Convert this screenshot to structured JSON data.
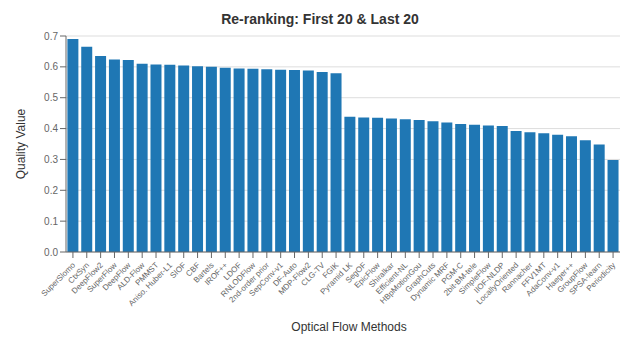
{
  "chart_data": {
    "type": "bar",
    "title": "Re-ranking: First 20 & Last 20",
    "xlabel": "Optical Flow Methods",
    "ylabel": "Quality Value",
    "categories": [
      "SuperSlomo",
      "CtxSyn",
      "DeepFlow2",
      "SuperFlow",
      "DeepFlow",
      "ALD-Flow",
      "PMMST",
      "Aniso. Huber-L1",
      "SIOF",
      "CBF",
      "Bartels",
      "IROF++",
      "LDOF",
      "RNLODFlow",
      "2nd-order prior",
      "SepConv-v1",
      "DF-Auto",
      "MDP-Flow2",
      "CLG-TV",
      "FGIK",
      "Pyramid LK",
      "SegOF",
      "EpicFlow",
      "Shiralkar",
      "Efficient-NL",
      "HBpMotionGou",
      "GraphCuts",
      "Dynamic MRF",
      "PGM-C",
      "2bit-BM-tele",
      "SimpleFlow",
      "IIOF-NLDP",
      "LocallyOriented",
      "Rannacher",
      "FFV1MT",
      "AdaConv-v1",
      "Haeger++",
      "GroupFlow",
      "SPSA-learn",
      "Periodicity"
    ],
    "values": [
      0.69,
      0.665,
      0.635,
      0.624,
      0.622,
      0.61,
      0.608,
      0.607,
      0.604,
      0.602,
      0.6,
      0.597,
      0.595,
      0.594,
      0.592,
      0.591,
      0.59,
      0.588,
      0.583,
      0.579,
      0.438,
      0.436,
      0.435,
      0.433,
      0.43,
      0.428,
      0.424,
      0.42,
      0.415,
      0.412,
      0.41,
      0.408,
      0.392,
      0.388,
      0.385,
      0.38,
      0.375,
      0.362,
      0.348,
      0.298
    ],
    "color": "#1f77b4",
    "ylim": [
      0,
      0.7
    ],
    "yticks": [
      {
        "value": 0,
        "label": "0.0"
      },
      0.1,
      0.2,
      0.3,
      0.4,
      0.5,
      0.6,
      0.7
    ],
    "grid": true
  }
}
